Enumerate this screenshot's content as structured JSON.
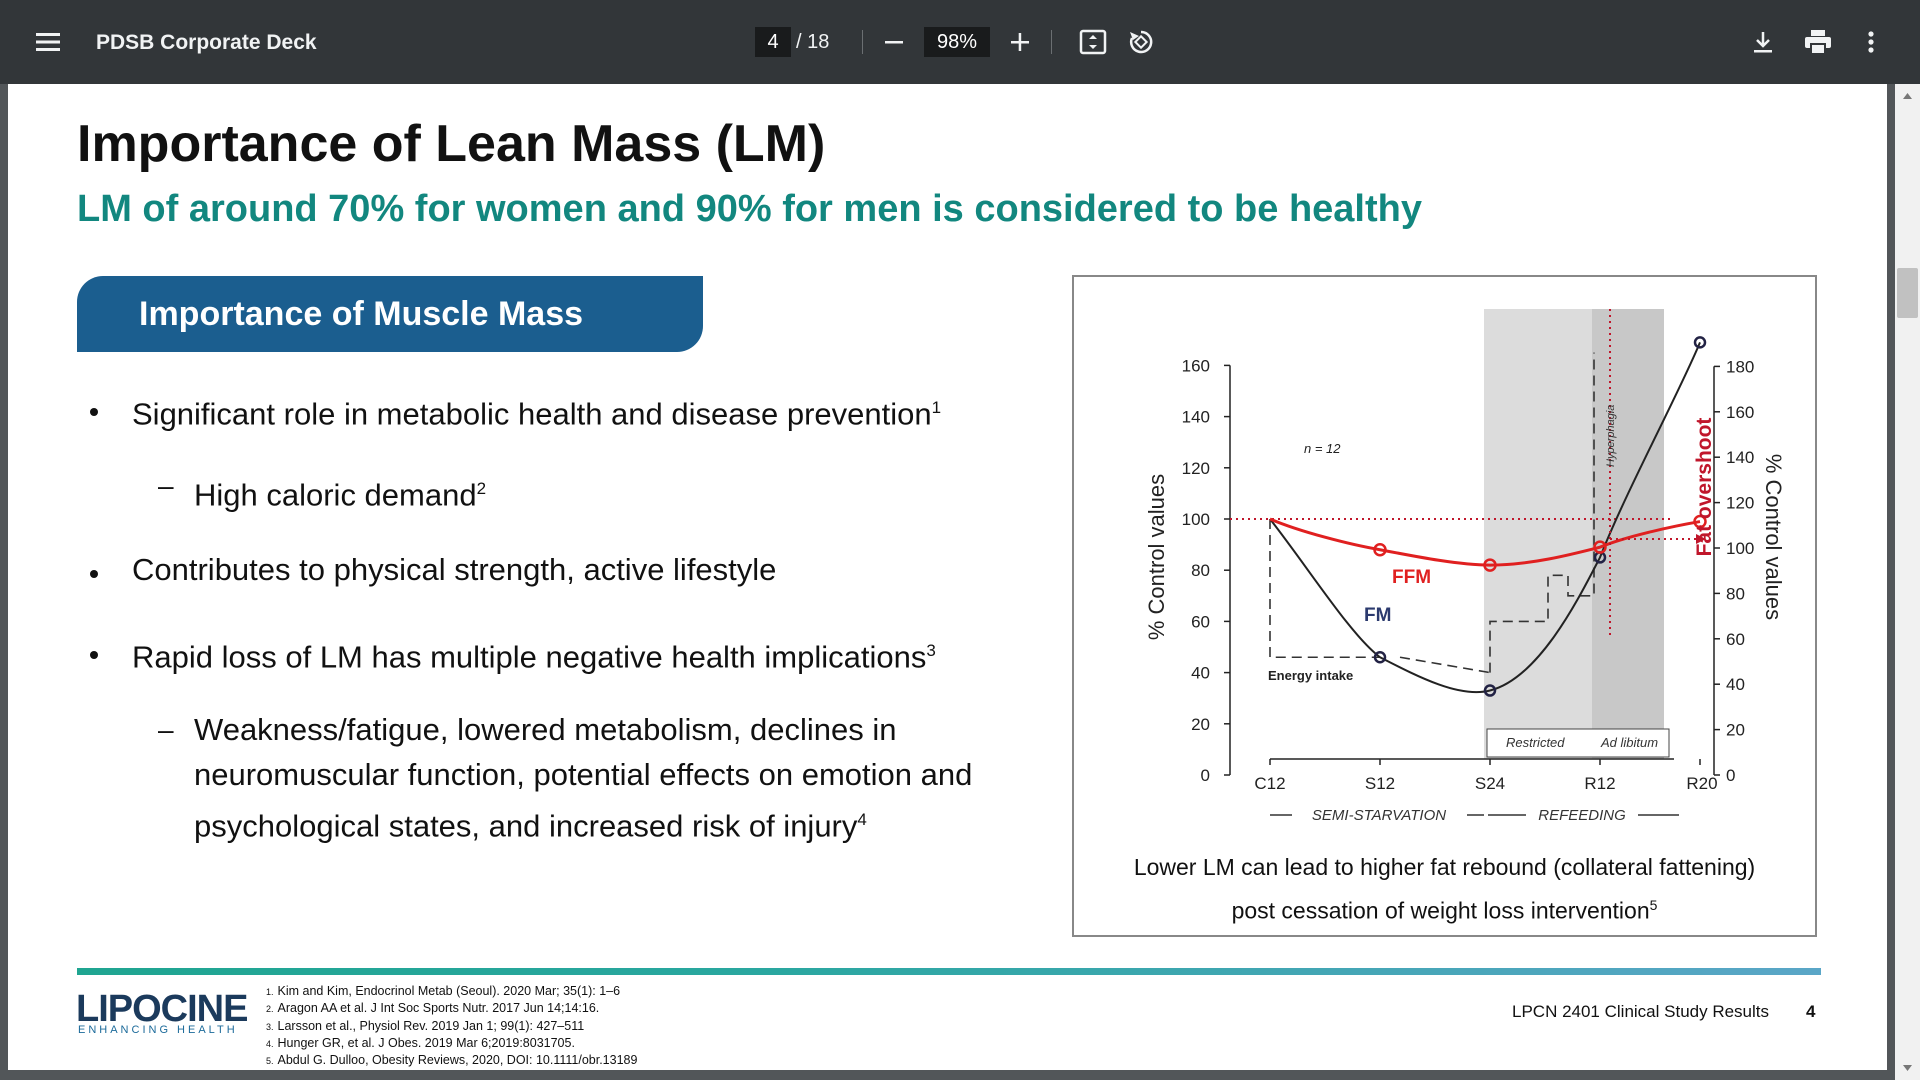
{
  "viewer": {
    "doc_title": "PDSB Corporate Deck",
    "current_page": "4",
    "page_total": "/ 18",
    "zoom": "98%"
  },
  "slide": {
    "title": "Importance of Lean Mass (LM)",
    "subtitle": "LM of around 70% for women and 90% for men is considered to be healthy",
    "section_title": "Importance of Muscle Mass",
    "bullets": [
      {
        "text": "Significant role in metabolic health and disease prevention",
        "sup": "1"
      },
      {
        "text": "High caloric demand",
        "sup": "2"
      },
      {
        "text": "Contributes to physical strength, active lifestyle",
        "sup": ""
      },
      {
        "text": "Rapid loss of LM has multiple negative health implications",
        "sup": "3"
      },
      {
        "lines": [
          "Weakness/fatigue, lowered metabolism, declines in",
          "neuromuscular function, potential effects on emotion and",
          "psychological states, and increased risk of injury"
        ],
        "sup": "4"
      }
    ],
    "caption_line1": "Lower LM can lead to higher fat rebound (collateral fattening)",
    "caption_line2": "post cessation of weight loss intervention",
    "caption_sup": "5",
    "logo": "LIPOCINE",
    "logo_tagline": "ENHANCING HEALTH",
    "references": [
      "Kim and Kim, Endocrinol Metab (Seoul). 2020 Mar; 35(1): 1–6",
      "Aragon AA et al. J Int Soc Sports Nutr. 2017 Jun 14;14:16.",
      "Larsson et al., Physiol Rev. 2019 Jan 1; 99(1): 427–511",
      "Hunger GR, et al. J Obes. 2019 Mar 6;2019:8031705.",
      "Abdul G. Dulloo, Obesity Reviews, 2020, DOI: 10.1111/obr.13189"
    ],
    "footer_text": "LPCN 2401 Clinical Study Results",
    "page_number": "4"
  },
  "chart_data": {
    "type": "line",
    "x": [
      "C12",
      "S12",
      "S24",
      "R12",
      "R20"
    ],
    "ylabel": "% Control values",
    "ylabel_right": "% Control values",
    "ylim": [
      0,
      160
    ],
    "ylim_right": [
      0,
      180
    ],
    "yticks": [
      "0",
      "20",
      "40",
      "60",
      "80",
      "100",
      "120",
      "140",
      "160"
    ],
    "yticks_right": [
      "0",
      "20",
      "40",
      "60",
      "80",
      "100",
      "120",
      "140",
      "160",
      "180"
    ],
    "n_label": "n = 12",
    "series": [
      {
        "name": "FFM",
        "color": "#e02020",
        "values": [
          100,
          88,
          82,
          89,
          99
        ]
      },
      {
        "name": "FM",
        "color": "#222244",
        "values": [
          100,
          46,
          33,
          85,
          169
        ]
      },
      {
        "name": "Energy intake",
        "color": "#333333",
        "values": [
          100,
          46,
          40,
          70,
          100
        ]
      }
    ],
    "annotations": [
      "Hyperphagia",
      "Fat overshoot",
      "Restricted",
      "Ad libitum",
      "SEMI-STARVATION",
      "REFEEDING"
    ],
    "colors": {
      "ffm": "#e02020",
      "fm": "#222244",
      "overshoot": "#c0162b"
    }
  }
}
